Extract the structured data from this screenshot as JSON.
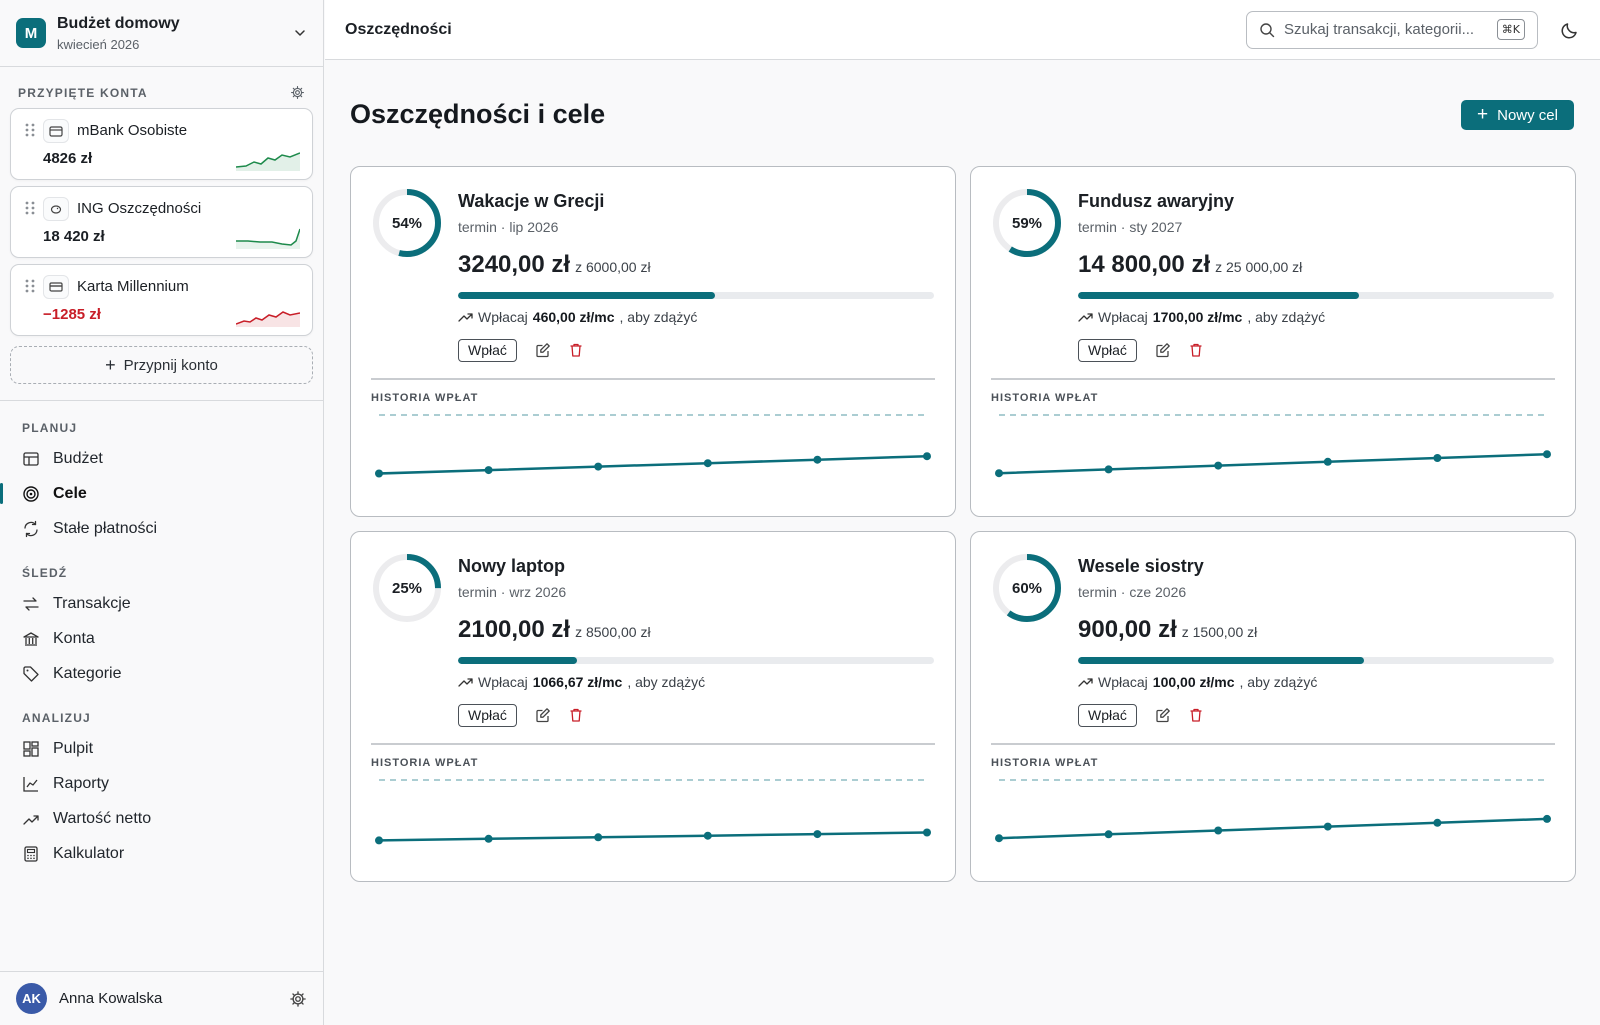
{
  "workspace": {
    "initial": "M",
    "name": "Budżet domowy",
    "period": "kwiecień 2026"
  },
  "pinned": {
    "title": "PRZYPIĘTE KONTA",
    "accounts": [
      {
        "name": "mBank Osobiste",
        "balance": "4826 zł",
        "trend": "up",
        "color": "#1d8a4b"
      },
      {
        "name": "ING Oszczędności",
        "balance": "18 420 zł",
        "trend": "up",
        "color": "#1d8a4b"
      },
      {
        "name": "Karta Millennium",
        "balance": "−1285 zł",
        "trend": "down",
        "color": "#c81e28"
      }
    ],
    "add_label": "Przypnij konto"
  },
  "nav": {
    "sections": [
      {
        "title": "PLANUJ",
        "items": [
          {
            "label": "Budżet",
            "icon": "budget-icon"
          },
          {
            "label": "Cele",
            "icon": "target-icon",
            "active": true
          },
          {
            "label": "Stałe płatności",
            "icon": "recurring-icon"
          }
        ]
      },
      {
        "title": "ŚLEDŹ",
        "items": [
          {
            "label": "Transakcje",
            "icon": "transactions-icon"
          },
          {
            "label": "Konta",
            "icon": "bank-icon"
          },
          {
            "label": "Kategorie",
            "icon": "tag-icon"
          }
        ]
      },
      {
        "title": "ANALIZUJ",
        "items": [
          {
            "label": "Pulpit",
            "icon": "dashboard-icon"
          },
          {
            "label": "Raporty",
            "icon": "reports-icon"
          },
          {
            "label": "Wartość netto",
            "icon": "net-worth-icon"
          },
          {
            "label": "Kalkulator",
            "icon": "calculator-icon"
          }
        ]
      }
    ]
  },
  "user": {
    "initials": "AK",
    "name": "Anna Kowalska"
  },
  "topbar": {
    "title": "Oszczędności",
    "search_placeholder": "Szukaj transakcji, kategorii...",
    "shortcut": "⌘K"
  },
  "page": {
    "title": "Oszczędności i cele",
    "new_button": "Nowy cel"
  },
  "colors": {
    "accent": "#0b6e7b",
    "danger": "#c81e28",
    "positive": "#1d8a4b"
  },
  "goals": [
    {
      "name": "Wakacje w Grecji",
      "deadline": "termin · lip 2026",
      "percent": 54,
      "percent_label": "54%",
      "saved": "3240,00 zł",
      "target": "z 6000,00 zł",
      "tip_prefix": "Wpłacaj",
      "monthly": "460,00 zł/mc",
      "tip_suffix": ", aby zdążyć",
      "deposit_label": "Wpłać",
      "history_title": "HISTORIA WPŁAT",
      "history": [
        540,
        1080,
        1620,
        2160,
        2700,
        3240
      ],
      "target_value": 6000
    },
    {
      "name": "Fundusz awaryjny",
      "deadline": "termin · sty 2027",
      "percent": 59,
      "percent_label": "59%",
      "saved": "14 800,00 zł",
      "target": "z 25 000,00 zł",
      "tip_prefix": "Wpłacaj",
      "monthly": "1700,00 zł/mc",
      "tip_suffix": ", aby zdążyć",
      "deposit_label": "Wpłać",
      "history_title": "HISTORIA WPŁAT",
      "history": [
        2467,
        4933,
        7400,
        9867,
        12333,
        14800
      ],
      "target_value": 25000
    },
    {
      "name": "Nowy laptop",
      "deadline": "termin · wrz 2026",
      "percent": 25,
      "percent_label": "25%",
      "saved": "2100,00 zł",
      "target": "z 8500,00 zł",
      "tip_prefix": "Wpłacaj",
      "monthly": "1066,67 zł/mc",
      "tip_suffix": ", aby zdążyć",
      "deposit_label": "Wpłać",
      "history_title": "HISTORIA WPŁAT",
      "history": [
        350,
        700,
        1050,
        1400,
        1750,
        2100
      ],
      "target_value": 8500
    },
    {
      "name": "Wesele siostry",
      "deadline": "termin · cze 2026",
      "percent": 60,
      "percent_label": "60%",
      "saved": "900,00 zł",
      "target": "z 1500,00 zł",
      "tip_prefix": "Wpłacaj",
      "monthly": "100,00 zł/mc",
      "tip_suffix": ", aby zdążyć",
      "deposit_label": "Wpłać",
      "history_title": "HISTORIA WPŁAT",
      "history": [
        150,
        300,
        450,
        600,
        750,
        900
      ],
      "target_value": 1500
    }
  ]
}
